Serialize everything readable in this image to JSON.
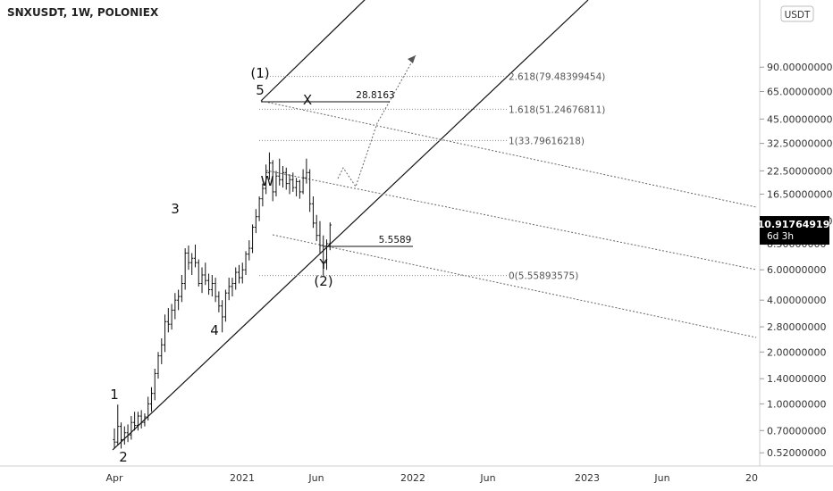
{
  "header": {
    "title": "SNXUSDT, 1W, POLONIEX",
    "currency": "USDT"
  },
  "price_axis": {
    "ticks": [
      {
        "value": 90,
        "label": "90.00000000"
      },
      {
        "value": 65,
        "label": "65.00000000"
      },
      {
        "value": 45,
        "label": "45.00000000"
      },
      {
        "value": 32.5,
        "label": "32.50000000"
      },
      {
        "value": 22.5,
        "label": "22.50000000"
      },
      {
        "value": 16.5,
        "label": "16.50000000"
      },
      {
        "value": 11.5,
        "label": "11.50000000"
      },
      {
        "value": 8.5,
        "label": "8.50000000"
      },
      {
        "value": 6,
        "label": "6.00000000"
      },
      {
        "value": 4,
        "label": "4.00000000"
      },
      {
        "value": 2.8,
        "label": "2.80000000"
      },
      {
        "value": 2,
        "label": "2.00000000"
      },
      {
        "value": 1.4,
        "label": "1.40000000"
      },
      {
        "value": 1,
        "label": "1.00000000"
      },
      {
        "value": 0.7,
        "label": "0.70000000"
      },
      {
        "value": 0.52,
        "label": "0.52000000"
      }
    ],
    "current_price": "10.91764919",
    "countdown": "6d 3h",
    "current_value": 10.91764919
  },
  "time_axis": {
    "labels": [
      "Apr",
      "2021",
      "Jun",
      "2022",
      "Jun",
      "2023",
      "Jun",
      "20"
    ]
  },
  "chart_data": {
    "type": "bar",
    "title": "SNXUSDT, 1W, POLONIEX",
    "scale": "log",
    "ylim": [
      0.5,
      92
    ],
    "x_unit": "weeks",
    "fib_levels": [
      {
        "label": "2.618(79.48399454)",
        "value": 79.48399454
      },
      {
        "label": "1.618(51.24676811)",
        "value": 51.24676811
      },
      {
        "label": "1(33.79616218)",
        "value": 33.79616218
      },
      {
        "label": "0(5.55893575)",
        "value": 5.55893575
      }
    ],
    "price_labels": [
      {
        "label": "28.8163",
        "value": 28.8163
      },
      {
        "label": "5.5589",
        "value": 5.5589
      }
    ],
    "wave_labels": [
      "1",
      "2",
      "3",
      "4",
      "5",
      "(1)",
      "W",
      "X",
      "Y",
      "(2)"
    ],
    "ohlc": [
      [
        0.62,
        0.72,
        0.55,
        0.6
      ],
      [
        0.6,
        0.99,
        0.58,
        0.74
      ],
      [
        0.74,
        0.78,
        0.55,
        0.62
      ],
      [
        0.62,
        0.74,
        0.58,
        0.68
      ],
      [
        0.68,
        0.76,
        0.6,
        0.66
      ],
      [
        0.66,
        0.85,
        0.62,
        0.78
      ],
      [
        0.78,
        0.9,
        0.7,
        0.75
      ],
      [
        0.75,
        0.9,
        0.7,
        0.85
      ],
      [
        0.85,
        0.92,
        0.72,
        0.78
      ],
      [
        0.78,
        0.88,
        0.74,
        0.84
      ],
      [
        0.84,
        1.1,
        0.8,
        1.0
      ],
      [
        1.0,
        1.25,
        0.9,
        1.15
      ],
      [
        1.15,
        1.6,
        1.05,
        1.5
      ],
      [
        1.5,
        2.0,
        1.4,
        1.9
      ],
      [
        1.9,
        2.4,
        1.7,
        2.2
      ],
      [
        2.2,
        3.3,
        2.0,
        3.0
      ],
      [
        3.0,
        3.6,
        2.6,
        2.9
      ],
      [
        2.9,
        3.8,
        2.7,
        3.5
      ],
      [
        3.5,
        4.4,
        3.1,
        4.0
      ],
      [
        4.0,
        4.6,
        3.5,
        4.2
      ],
      [
        4.2,
        5.6,
        3.9,
        5.0
      ],
      [
        5.0,
        8.0,
        4.6,
        7.5
      ],
      [
        7.5,
        8.3,
        6.0,
        6.6
      ],
      [
        6.6,
        7.5,
        5.6,
        7.0
      ],
      [
        7.0,
        8.4,
        6.2,
        6.6
      ],
      [
        6.6,
        6.9,
        4.8,
        5.0
      ],
      [
        5.0,
        6.2,
        4.4,
        5.6
      ],
      [
        5.6,
        6.6,
        4.9,
        5.2
      ],
      [
        5.2,
        5.7,
        4.3,
        4.6
      ],
      [
        4.6,
        5.6,
        4.2,
        5.0
      ],
      [
        5.0,
        5.4,
        3.9,
        4.2
      ],
      [
        4.2,
        4.5,
        3.4,
        3.7
      ],
      [
        3.7,
        4.0,
        2.6,
        3.2
      ],
      [
        3.2,
        4.6,
        3.0,
        4.4
      ],
      [
        4.4,
        5.4,
        4.0,
        4.8
      ],
      [
        4.8,
        5.4,
        4.2,
        5.0
      ],
      [
        5.0,
        6.2,
        4.6,
        5.8
      ],
      [
        5.8,
        6.4,
        5.0,
        5.4
      ],
      [
        5.4,
        6.6,
        5.0,
        6.0
      ],
      [
        6.0,
        7.7,
        5.6,
        7.4
      ],
      [
        7.4,
        8.9,
        6.8,
        8.0
      ],
      [
        8.0,
        11.0,
        7.5,
        10.6
      ],
      [
        10.6,
        13.5,
        9.8,
        12.2
      ],
      [
        12.2,
        16.0,
        11.5,
        15.5
      ],
      [
        15.5,
        19.0,
        14.0,
        17.8
      ],
      [
        17.8,
        24.5,
        16.5,
        22.0
      ],
      [
        22.0,
        28.8,
        20.0,
        25.0
      ],
      [
        25.0,
        26.0,
        15.0,
        17.0
      ],
      [
        17.0,
        22.5,
        16.0,
        21.0
      ],
      [
        21.0,
        26.5,
        18.5,
        20.0
      ],
      [
        20.0,
        24.0,
        18.0,
        22.0
      ],
      [
        22.0,
        23.5,
        17.5,
        19.0
      ],
      [
        19.0,
        21.5,
        16.5,
        20.0
      ],
      [
        20.0,
        22.0,
        17.0,
        18.0
      ],
      [
        18.0,
        20.5,
        16.0,
        19.5
      ],
      [
        19.5,
        20.0,
        15.5,
        17.0
      ],
      [
        17.0,
        23.0,
        16.5,
        20.5
      ],
      [
        20.5,
        26.5,
        19.0,
        22.0
      ],
      [
        22.0,
        23.0,
        13.0,
        14.5
      ],
      [
        14.5,
        16.0,
        10.5,
        11.2
      ],
      [
        11.2,
        12.5,
        8.8,
        9.5
      ],
      [
        9.5,
        11.5,
        7.5,
        8.3
      ],
      [
        8.3,
        9.5,
        5.56,
        6.6
      ],
      [
        6.6,
        9.0,
        6.0,
        8.5
      ],
      [
        8.5,
        11.3,
        7.8,
        10.92
      ]
    ]
  }
}
